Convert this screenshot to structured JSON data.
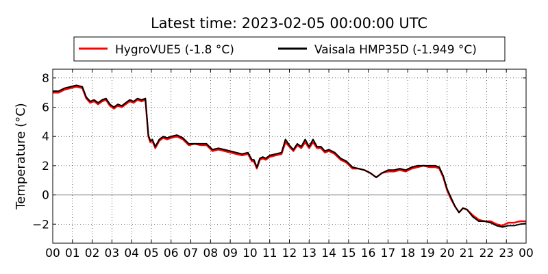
{
  "chart_data": {
    "type": "line",
    "title": "Latest time: 2023-02-05 00:00:00 UTC",
    "ylabel": "Temperature (°C)",
    "xlabel": "",
    "x_ticks": [
      "00",
      "01",
      "02",
      "03",
      "04",
      "05",
      "06",
      "07",
      "08",
      "09",
      "10",
      "11",
      "12",
      "13",
      "14",
      "15",
      "16",
      "17",
      "18",
      "19",
      "20",
      "21",
      "22",
      "23",
      "00"
    ],
    "y_ticks": [
      -2,
      0,
      2,
      4,
      6,
      8
    ],
    "ylim": [
      -3.3,
      8.6
    ],
    "xlim": [
      0,
      24
    ],
    "grid": true,
    "legend_position": "top",
    "series": [
      {
        "name": "HygroVUE5 (-1.8 °C)",
        "color": "#ff0000",
        "x": [
          0,
          0.3,
          0.6,
          0.9,
          1.2,
          1.5,
          1.7,
          1.9,
          2.1,
          2.3,
          2.5,
          2.7,
          2.9,
          3.1,
          3.3,
          3.5,
          3.7,
          3.9,
          4.1,
          4.3,
          4.5,
          4.7,
          4.85,
          4.95,
          5.05,
          5.2,
          5.4,
          5.6,
          5.8,
          6.0,
          6.3,
          6.6,
          6.9,
          7.2,
          7.5,
          7.8,
          8.1,
          8.4,
          8.7,
          9.0,
          9.3,
          9.6,
          9.9,
          10.1,
          10.2,
          10.35,
          10.5,
          10.65,
          10.8,
          11.0,
          11.3,
          11.6,
          11.8,
          12.0,
          12.2,
          12.4,
          12.6,
          12.8,
          13.0,
          13.2,
          13.4,
          13.6,
          13.8,
          14.0,
          14.3,
          14.6,
          14.9,
          15.2,
          15.5,
          15.8,
          16.1,
          16.4,
          16.7,
          17.0,
          17.3,
          17.6,
          17.9,
          18.2,
          18.5,
          18.8,
          19.1,
          19.4,
          19.6,
          19.8,
          20.0,
          20.2,
          20.4,
          20.6,
          20.8,
          21.0,
          21.3,
          21.6,
          21.9,
          22.2,
          22.5,
          22.8,
          23.1,
          23.4,
          23.7,
          24.0
        ],
        "values": [
          7.0,
          7.0,
          7.2,
          7.3,
          7.4,
          7.3,
          6.6,
          6.3,
          6.4,
          6.2,
          6.4,
          6.5,
          6.1,
          5.9,
          6.1,
          6.0,
          6.2,
          6.4,
          6.3,
          6.5,
          6.4,
          6.5,
          4.0,
          3.6,
          3.7,
          3.2,
          3.7,
          3.9,
          3.8,
          3.9,
          4.0,
          3.8,
          3.4,
          3.5,
          3.4,
          3.4,
          3.0,
          3.1,
          3.0,
          2.9,
          2.8,
          2.7,
          2.8,
          2.3,
          2.3,
          1.8,
          2.4,
          2.5,
          2.4,
          2.6,
          2.7,
          2.8,
          3.6,
          3.3,
          3.0,
          3.4,
          3.2,
          3.6,
          3.2,
          3.6,
          3.2,
          3.2,
          2.9,
          3.0,
          2.8,
          2.4,
          2.2,
          1.8,
          1.8,
          1.7,
          1.5,
          1.2,
          1.5,
          1.6,
          1.6,
          1.7,
          1.6,
          1.8,
          1.9,
          2.0,
          1.9,
          1.9,
          1.8,
          1.2,
          0.3,
          -0.3,
          -0.8,
          -1.2,
          -0.9,
          -1.0,
          -1.4,
          -1.7,
          -1.8,
          -1.8,
          -2.0,
          -2.1,
          -1.9,
          -1.9,
          -1.8,
          -1.8
        ]
      },
      {
        "name": "Vaisala HMP35D (-1.949 °C)",
        "color": "#000000",
        "x": [
          0,
          0.3,
          0.6,
          0.9,
          1.2,
          1.5,
          1.7,
          1.9,
          2.1,
          2.3,
          2.5,
          2.7,
          2.9,
          3.1,
          3.3,
          3.5,
          3.7,
          3.9,
          4.1,
          4.3,
          4.5,
          4.7,
          4.85,
          4.95,
          5.05,
          5.2,
          5.4,
          5.6,
          5.8,
          6.0,
          6.3,
          6.6,
          6.9,
          7.2,
          7.5,
          7.8,
          8.1,
          8.4,
          8.7,
          9.0,
          9.3,
          9.6,
          9.9,
          10.1,
          10.2,
          10.35,
          10.5,
          10.65,
          10.8,
          11.0,
          11.3,
          11.6,
          11.8,
          12.0,
          12.2,
          12.4,
          12.6,
          12.8,
          13.0,
          13.2,
          13.4,
          13.6,
          13.8,
          14.0,
          14.3,
          14.6,
          14.9,
          15.2,
          15.5,
          15.8,
          16.1,
          16.4,
          16.7,
          17.0,
          17.3,
          17.6,
          17.9,
          18.2,
          18.5,
          18.8,
          19.1,
          19.4,
          19.6,
          19.8,
          20.0,
          20.2,
          20.4,
          20.6,
          20.8,
          21.0,
          21.3,
          21.6,
          21.9,
          22.2,
          22.5,
          22.8,
          23.1,
          23.4,
          23.7,
          24.0
        ],
        "values": [
          7.1,
          7.1,
          7.3,
          7.4,
          7.5,
          7.4,
          6.7,
          6.4,
          6.5,
          6.3,
          6.5,
          6.6,
          6.2,
          6.0,
          6.2,
          6.1,
          6.3,
          6.5,
          6.4,
          6.6,
          6.5,
          6.6,
          4.1,
          3.7,
          3.8,
          3.3,
          3.8,
          4.0,
          3.9,
          4.0,
          4.1,
          3.9,
          3.5,
          3.5,
          3.5,
          3.5,
          3.1,
          3.2,
          3.1,
          3.0,
          2.9,
          2.8,
          2.9,
          2.4,
          2.4,
          1.9,
          2.5,
          2.6,
          2.5,
          2.7,
          2.8,
          2.9,
          3.8,
          3.4,
          3.1,
          3.5,
          3.3,
          3.8,
          3.3,
          3.8,
          3.3,
          3.3,
          3.0,
          3.1,
          2.9,
          2.5,
          2.3,
          1.9,
          1.8,
          1.7,
          1.5,
          1.2,
          1.5,
          1.7,
          1.7,
          1.8,
          1.7,
          1.9,
          2.0,
          2.0,
          2.0,
          2.0,
          1.9,
          1.3,
          0.4,
          -0.2,
          -0.8,
          -1.2,
          -0.9,
          -1.0,
          -1.5,
          -1.8,
          -1.8,
          -1.9,
          -2.1,
          -2.2,
          -2.1,
          -2.1,
          -2.0,
          -1.949
        ]
      }
    ]
  }
}
